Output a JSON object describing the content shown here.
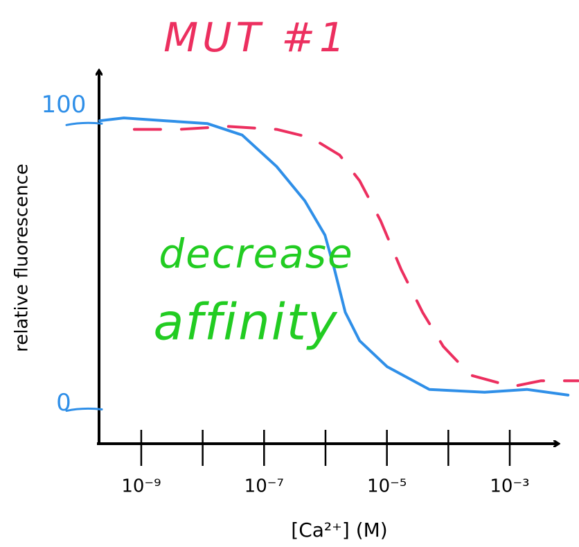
{
  "chart_data": {
    "type": "line",
    "xscale": "log",
    "xlabel": "[Ca²⁺] (M)",
    "ylabel": "relative fluorescence",
    "xlim": [
      1.9e-10,
      0.006
    ],
    "ylim": [
      -12,
      119
    ],
    "xticks": [
      {
        "value": 1e-09,
        "label": "10⁻⁹"
      },
      {
        "value": 1e-08,
        "label": null
      },
      {
        "value": 1e-07,
        "label": "10⁻⁷"
      },
      {
        "value": 1e-06,
        "label": null
      },
      {
        "value": 1e-05,
        "label": "10⁻⁵"
      },
      {
        "value": 0.0001,
        "label": null
      },
      {
        "value": 0.001,
        "label": "10⁻³"
      }
    ],
    "yticks": [
      0,
      100
    ],
    "ytick_color": "#2f8fe8",
    "series": [
      {
        "color": "#2f8fe8",
        "dashed": false,
        "x": [
          2.1e-10,
          5.2e-10,
          2.5e-09,
          1.2e-08,
          4.4e-08,
          1.6e-07,
          4.6e-07,
          9.8e-07,
          1.4e-06,
          2.1e-06,
          3.6e-06,
          1e-05,
          4.9e-05,
          0.00039,
          0.0019,
          0.0089
        ],
        "values": [
          101,
          102,
          101,
          100,
          96,
          85,
          73,
          61,
          49,
          34,
          24,
          15,
          7,
          6,
          7,
          5
        ]
      },
      {
        "color": "#ec2f5f",
        "dashed": true,
        "x": [
          7.7e-10,
          4.2e-09,
          2.6e-08,
          1.6e-07,
          5.9e-07,
          1.7e-06,
          3.6e-06,
          7.9e-06,
          1.7e-05,
          3.8e-05,
          8.3e-05,
          0.00023,
          0.0011,
          0.0032,
          0.013
        ],
        "values": [
          98,
          98,
          99,
          98,
          95,
          89,
          80,
          66,
          49,
          34,
          22,
          12,
          8,
          10,
          10
        ]
      }
    ],
    "annotations": [
      {
        "text": "MUT #1",
        "color": "#ec2f5f"
      },
      {
        "text": "decrease",
        "color": "#22cc22"
      },
      {
        "text": "affinity",
        "color": "#22cc22"
      }
    ]
  }
}
